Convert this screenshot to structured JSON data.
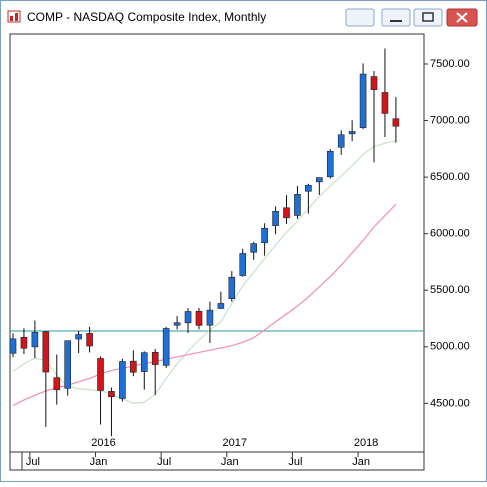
{
  "window": {
    "title": "COMP - NASDAQ Composite Index, Monthly"
  },
  "chart_data": {
    "type": "candlestick",
    "categories": [
      null,
      null,
      "Jul",
      null,
      null,
      null,
      null,
      null,
      "Jan",
      null,
      null,
      null,
      null,
      null,
      "Jul",
      null,
      null,
      null,
      null,
      null,
      "Jan",
      null,
      null,
      null,
      null,
      null,
      "Jul",
      null,
      null,
      null,
      null,
      null,
      "Jan",
      null,
      null,
      null
    ],
    "year_labels": [
      null,
      null,
      null,
      null,
      null,
      null,
      null,
      null,
      "2016",
      null,
      null,
      null,
      null,
      null,
      null,
      null,
      null,
      null,
      null,
      null,
      "2017",
      null,
      null,
      null,
      null,
      null,
      null,
      null,
      null,
      null,
      null,
      null,
      "2018",
      null,
      null,
      null
    ],
    "open": [
      4943,
      5084,
      4999,
      5133,
      4727,
      4633,
      5069,
      5119,
      4897,
      4606,
      4543,
      4873,
      4781,
      4951,
      4836,
      5191,
      5212,
      5314,
      5191,
      5339,
      5425,
      5630,
      5836,
      5920,
      6071,
      6229,
      6161,
      6375,
      6458,
      6503,
      6764,
      6883,
      6937,
      7389,
      7248,
      7016
    ],
    "high": [
      5120,
      5164,
      5232,
      5139,
      4931,
      5050,
      5142,
      5176,
      4916,
      4640,
      4893,
      4969,
      4960,
      4980,
      5176,
      5271,
      5342,
      5344,
      5399,
      5487,
      5669,
      5867,
      5928,
      6092,
      6241,
      6341,
      6422,
      6441,
      6495,
      6748,
      6914,
      7003,
      7505,
      7438,
      7637,
      7207
    ],
    "low": [
      4909,
      4936,
      4900,
      4292,
      4488,
      4568,
      4945,
      4950,
      4313,
      4210,
      4516,
      4740,
      4621,
      4574,
      4813,
      5154,
      5123,
      5154,
      5034,
      5333,
      5399,
      5619,
      5769,
      5805,
      5996,
      6085,
      6131,
      6177,
      6343,
      6487,
      6697,
      6817,
      6924,
      6630,
      6854,
      6805
    ],
    "close": [
      5070,
      4987,
      5128,
      4777,
      4620,
      5054,
      5109,
      5007,
      4614,
      4558,
      4870,
      4775,
      4948,
      4843,
      5162,
      5213,
      5312,
      5189,
      5324,
      5383,
      5615,
      5825,
      5912,
      6048,
      6198,
      6140,
      6348,
      6428,
      6496,
      6728,
      6874,
      6903,
      7411,
      7273,
      7063,
      6950
    ],
    "up_color": "#1f6fd6",
    "down_color": "#d0161b",
    "series": [
      {
        "color": "#c5e3c5",
        "values": [
          4780,
          4850,
          4900,
          4880,
          4750,
          4650,
          4630,
          4620,
          4610,
          4580,
          4540,
          4500,
          4510,
          4580,
          4720,
          4850,
          4960,
          5060,
          5150,
          5220,
          5380,
          5540,
          5660,
          5780,
          5900,
          6010,
          6110,
          6220,
          6330,
          6420,
          6510,
          6600,
          6700,
          6770,
          6800,
          6820
        ]
      },
      {
        "color": "#f08cb4",
        "values": [
          4480,
          4530,
          4570,
          4610,
          4640,
          4660,
          4690,
          4720,
          4760,
          4790,
          4810,
          4830,
          4850,
          4870,
          4890,
          4910,
          4930,
          4950,
          4970,
          4990,
          5010,
          5040,
          5080,
          5150,
          5220,
          5290,
          5360,
          5440,
          5530,
          5620,
          5720,
          5830,
          5940,
          6060,
          6160,
          6260
        ]
      }
    ],
    "reference_line": 5140,
    "reference_color": "#2a9a9a",
    "ylim": [
      4070,
      7765
    ],
    "yticks": [
      {
        "value": 4500,
        "label": "4500.00"
      },
      {
        "value": 5000,
        "label": "5000.00"
      },
      {
        "value": 5500,
        "label": "5500.00"
      },
      {
        "value": 6000,
        "label": "6000.00"
      },
      {
        "value": 6500,
        "label": "6500.00"
      },
      {
        "value": 7000,
        "label": "7000.00"
      },
      {
        "value": 7500,
        "label": "7500.00"
      }
    ]
  }
}
